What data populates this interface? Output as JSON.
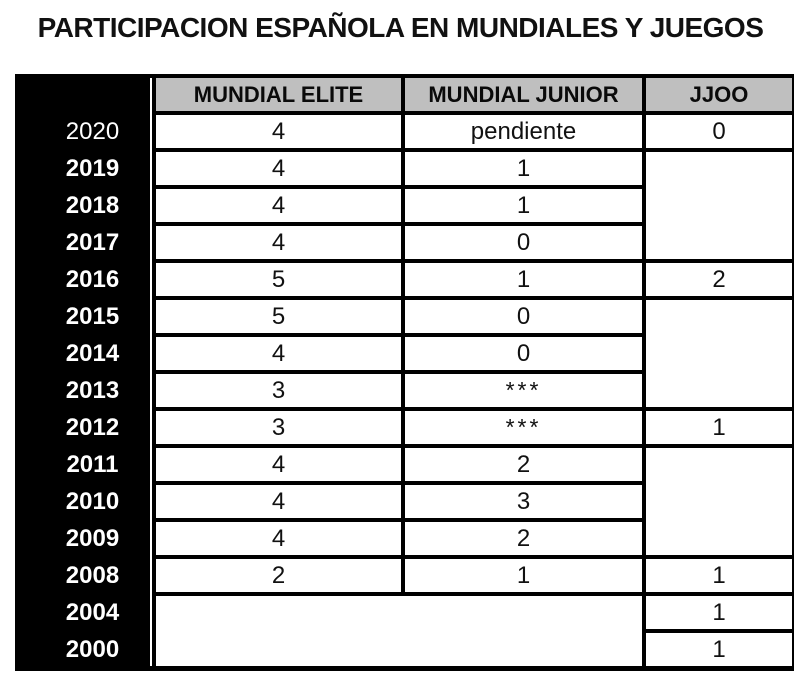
{
  "title": "PARTICIPACION ESPAÑOLA EN MUNDIALES Y JUEGOS",
  "colors": {
    "header_bg": "#bfbfbf",
    "year_column_bg": "#000000",
    "year_text": "#ffffff",
    "grid_border": "#000000",
    "cell_bg": "#ffffff",
    "title_text": "#111111"
  },
  "chart_data": {
    "type": "table",
    "title": "PARTICIPACION ESPAÑOLA EN MUNDIALES Y JUEGOS",
    "columns": [
      "",
      "MUNDIAL ELITE",
      "MUNDIAL JUNIOR",
      "JJOO"
    ],
    "rows": [
      {
        "year": "2020",
        "mundial_elite": "4",
        "mundial_junior": "pendiente",
        "jjoo": "0"
      },
      {
        "year": "2019",
        "mundial_elite": "4",
        "mundial_junior": "1",
        "jjoo": ""
      },
      {
        "year": "2018",
        "mundial_elite": "4",
        "mundial_junior": "1",
        "jjoo": ""
      },
      {
        "year": "2017",
        "mundial_elite": "4",
        "mundial_junior": "0",
        "jjoo": ""
      },
      {
        "year": "2016",
        "mundial_elite": "5",
        "mundial_junior": "1",
        "jjoo": "2"
      },
      {
        "year": "2015",
        "mundial_elite": "5",
        "mundial_junior": "0",
        "jjoo": ""
      },
      {
        "year": "2014",
        "mundial_elite": "4",
        "mundial_junior": "0",
        "jjoo": ""
      },
      {
        "year": "2013",
        "mundial_elite": "3",
        "mundial_junior": "***",
        "jjoo": ""
      },
      {
        "year": "2012",
        "mundial_elite": "3",
        "mundial_junior": "***",
        "jjoo": "1"
      },
      {
        "year": "2011",
        "mundial_elite": "4",
        "mundial_junior": "2",
        "jjoo": ""
      },
      {
        "year": "2010",
        "mundial_elite": "4",
        "mundial_junior": "3",
        "jjoo": ""
      },
      {
        "year": "2009",
        "mundial_elite": "4",
        "mundial_junior": "2",
        "jjoo": ""
      },
      {
        "year": "2008",
        "mundial_elite": "2",
        "mundial_junior": "1",
        "jjoo": "1"
      },
      {
        "year": "2004",
        "mundial_elite": "",
        "mundial_junior": "",
        "jjoo": "1"
      },
      {
        "year": "2000",
        "mundial_elite": "",
        "mundial_junior": "",
        "jjoo": "1"
      }
    ],
    "merged_cells": [
      {
        "column": "jjoo",
        "years": [
          "2019",
          "2018",
          "2017"
        ],
        "value": ""
      },
      {
        "column": "jjoo",
        "years": [
          "2015",
          "2014",
          "2013"
        ],
        "value": ""
      },
      {
        "column": "jjoo",
        "years": [
          "2011",
          "2010",
          "2009"
        ],
        "value": ""
      },
      {
        "columns": [
          "mundial_elite",
          "mundial_junior"
        ],
        "years": [
          "2004",
          "2000"
        ],
        "value": ""
      }
    ],
    "layout_hints": {
      "grid": "thick black borders",
      "year_column_style": "black background, white bold text (2020 regular weight)",
      "header_style": "gray background, bold black text"
    }
  }
}
